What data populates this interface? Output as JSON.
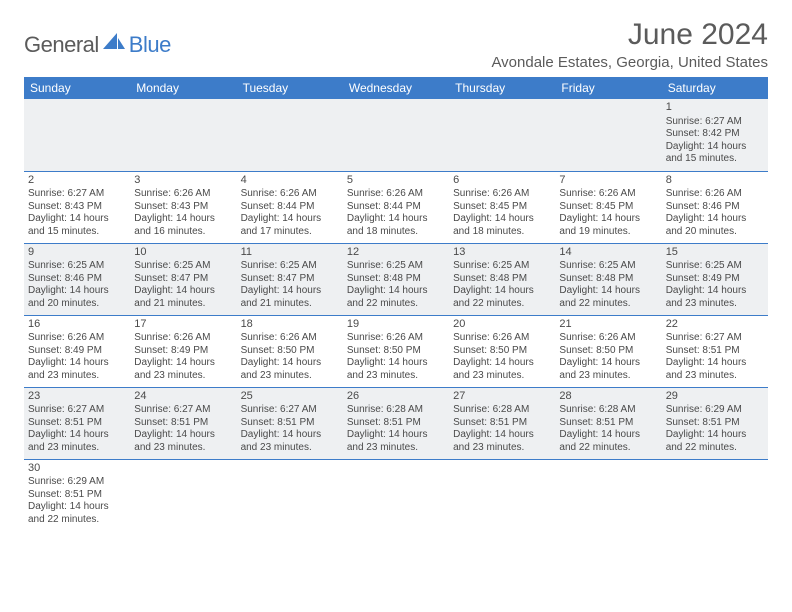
{
  "logo": {
    "general": "General",
    "blue": "Blue"
  },
  "header": {
    "month_title": "June 2024",
    "location": "Avondale Estates, Georgia, United States"
  },
  "colors": {
    "brand": "#3d7cc9",
    "header_text": "#ffffff",
    "body_text": "#4a4a4a",
    "shade_bg": "#eef0f2",
    "page_bg": "#ffffff",
    "logo_gray": "#5b5b5b"
  },
  "typography": {
    "title_fontsize": 30,
    "location_fontsize": 15,
    "dayheader_fontsize": 12,
    "daynum_fontsize": 11,
    "info_fontsize": 10
  },
  "day_headers": [
    "Sunday",
    "Monday",
    "Tuesday",
    "Wednesday",
    "Thursday",
    "Friday",
    "Saturday"
  ],
  "weeks": [
    {
      "shade": true,
      "days": [
        {
          "empty": true
        },
        {
          "empty": true
        },
        {
          "empty": true
        },
        {
          "empty": true
        },
        {
          "empty": true
        },
        {
          "empty": true
        },
        {
          "num": "1",
          "sunrise": "Sunrise: 6:27 AM",
          "sunset": "Sunset: 8:42 PM",
          "daylight": "Daylight: 14 hours and 15 minutes."
        }
      ]
    },
    {
      "shade": false,
      "days": [
        {
          "num": "2",
          "sunrise": "Sunrise: 6:27 AM",
          "sunset": "Sunset: 8:43 PM",
          "daylight": "Daylight: 14 hours and 15 minutes."
        },
        {
          "num": "3",
          "sunrise": "Sunrise: 6:26 AM",
          "sunset": "Sunset: 8:43 PM",
          "daylight": "Daylight: 14 hours and 16 minutes."
        },
        {
          "num": "4",
          "sunrise": "Sunrise: 6:26 AM",
          "sunset": "Sunset: 8:44 PM",
          "daylight": "Daylight: 14 hours and 17 minutes."
        },
        {
          "num": "5",
          "sunrise": "Sunrise: 6:26 AM",
          "sunset": "Sunset: 8:44 PM",
          "daylight": "Daylight: 14 hours and 18 minutes."
        },
        {
          "num": "6",
          "sunrise": "Sunrise: 6:26 AM",
          "sunset": "Sunset: 8:45 PM",
          "daylight": "Daylight: 14 hours and 18 minutes."
        },
        {
          "num": "7",
          "sunrise": "Sunrise: 6:26 AM",
          "sunset": "Sunset: 8:45 PM",
          "daylight": "Daylight: 14 hours and 19 minutes."
        },
        {
          "num": "8",
          "sunrise": "Sunrise: 6:26 AM",
          "sunset": "Sunset: 8:46 PM",
          "daylight": "Daylight: 14 hours and 20 minutes."
        }
      ]
    },
    {
      "shade": true,
      "days": [
        {
          "num": "9",
          "sunrise": "Sunrise: 6:25 AM",
          "sunset": "Sunset: 8:46 PM",
          "daylight": "Daylight: 14 hours and 20 minutes."
        },
        {
          "num": "10",
          "sunrise": "Sunrise: 6:25 AM",
          "sunset": "Sunset: 8:47 PM",
          "daylight": "Daylight: 14 hours and 21 minutes."
        },
        {
          "num": "11",
          "sunrise": "Sunrise: 6:25 AM",
          "sunset": "Sunset: 8:47 PM",
          "daylight": "Daylight: 14 hours and 21 minutes."
        },
        {
          "num": "12",
          "sunrise": "Sunrise: 6:25 AM",
          "sunset": "Sunset: 8:48 PM",
          "daylight": "Daylight: 14 hours and 22 minutes."
        },
        {
          "num": "13",
          "sunrise": "Sunrise: 6:25 AM",
          "sunset": "Sunset: 8:48 PM",
          "daylight": "Daylight: 14 hours and 22 minutes."
        },
        {
          "num": "14",
          "sunrise": "Sunrise: 6:25 AM",
          "sunset": "Sunset: 8:48 PM",
          "daylight": "Daylight: 14 hours and 22 minutes."
        },
        {
          "num": "15",
          "sunrise": "Sunrise: 6:25 AM",
          "sunset": "Sunset: 8:49 PM",
          "daylight": "Daylight: 14 hours and 23 minutes."
        }
      ]
    },
    {
      "shade": false,
      "days": [
        {
          "num": "16",
          "sunrise": "Sunrise: 6:26 AM",
          "sunset": "Sunset: 8:49 PM",
          "daylight": "Daylight: 14 hours and 23 minutes."
        },
        {
          "num": "17",
          "sunrise": "Sunrise: 6:26 AM",
          "sunset": "Sunset: 8:49 PM",
          "daylight": "Daylight: 14 hours and 23 minutes."
        },
        {
          "num": "18",
          "sunrise": "Sunrise: 6:26 AM",
          "sunset": "Sunset: 8:50 PM",
          "daylight": "Daylight: 14 hours and 23 minutes."
        },
        {
          "num": "19",
          "sunrise": "Sunrise: 6:26 AM",
          "sunset": "Sunset: 8:50 PM",
          "daylight": "Daylight: 14 hours and 23 minutes."
        },
        {
          "num": "20",
          "sunrise": "Sunrise: 6:26 AM",
          "sunset": "Sunset: 8:50 PM",
          "daylight": "Daylight: 14 hours and 23 minutes."
        },
        {
          "num": "21",
          "sunrise": "Sunrise: 6:26 AM",
          "sunset": "Sunset: 8:50 PM",
          "daylight": "Daylight: 14 hours and 23 minutes."
        },
        {
          "num": "22",
          "sunrise": "Sunrise: 6:27 AM",
          "sunset": "Sunset: 8:51 PM",
          "daylight": "Daylight: 14 hours and 23 minutes."
        }
      ]
    },
    {
      "shade": true,
      "days": [
        {
          "num": "23",
          "sunrise": "Sunrise: 6:27 AM",
          "sunset": "Sunset: 8:51 PM",
          "daylight": "Daylight: 14 hours and 23 minutes."
        },
        {
          "num": "24",
          "sunrise": "Sunrise: 6:27 AM",
          "sunset": "Sunset: 8:51 PM",
          "daylight": "Daylight: 14 hours and 23 minutes."
        },
        {
          "num": "25",
          "sunrise": "Sunrise: 6:27 AM",
          "sunset": "Sunset: 8:51 PM",
          "daylight": "Daylight: 14 hours and 23 minutes."
        },
        {
          "num": "26",
          "sunrise": "Sunrise: 6:28 AM",
          "sunset": "Sunset: 8:51 PM",
          "daylight": "Daylight: 14 hours and 23 minutes."
        },
        {
          "num": "27",
          "sunrise": "Sunrise: 6:28 AM",
          "sunset": "Sunset: 8:51 PM",
          "daylight": "Daylight: 14 hours and 23 minutes."
        },
        {
          "num": "28",
          "sunrise": "Sunrise: 6:28 AM",
          "sunset": "Sunset: 8:51 PM",
          "daylight": "Daylight: 14 hours and 22 minutes."
        },
        {
          "num": "29",
          "sunrise": "Sunrise: 6:29 AM",
          "sunset": "Sunset: 8:51 PM",
          "daylight": "Daylight: 14 hours and 22 minutes."
        }
      ]
    },
    {
      "shade": false,
      "days": [
        {
          "num": "30",
          "sunrise": "Sunrise: 6:29 AM",
          "sunset": "Sunset: 8:51 PM",
          "daylight": "Daylight: 14 hours and 22 minutes."
        },
        {
          "empty": true
        },
        {
          "empty": true
        },
        {
          "empty": true
        },
        {
          "empty": true
        },
        {
          "empty": true
        },
        {
          "empty": true
        }
      ]
    }
  ]
}
